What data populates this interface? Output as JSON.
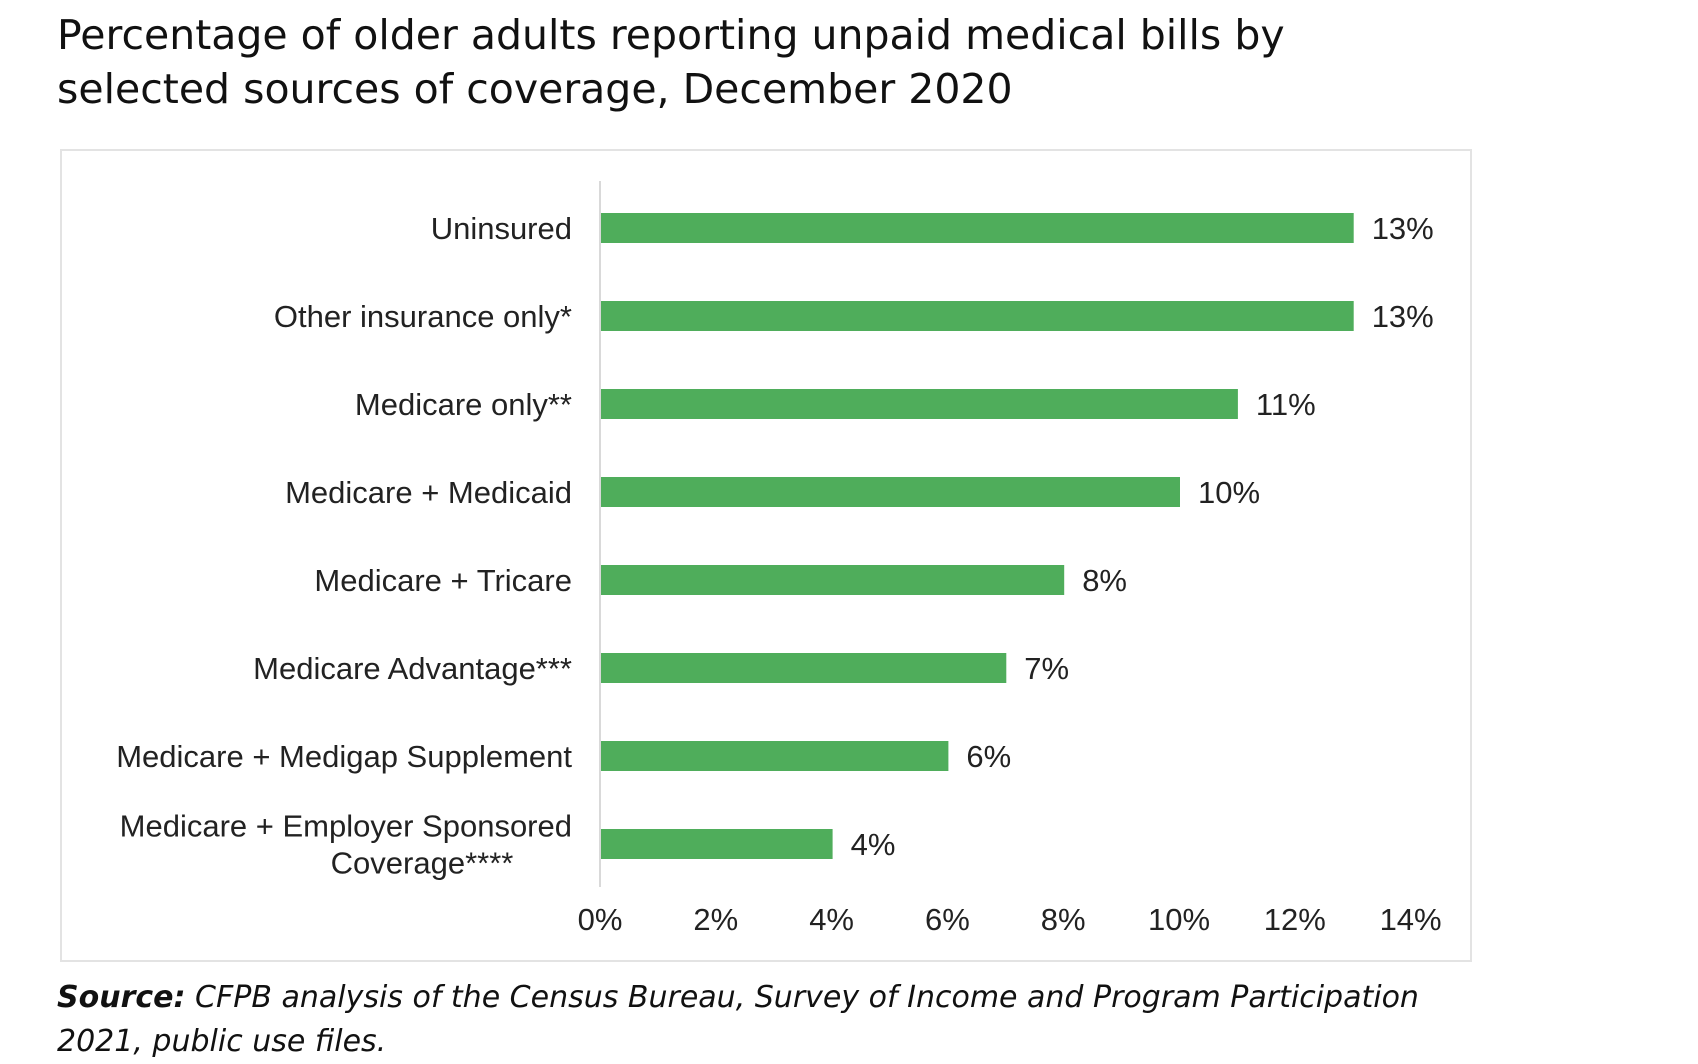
{
  "page": {
    "title": "Percentage of older adults reporting unpaid medical bills by selected sources of coverage, December 2020",
    "source_label": "Source:",
    "source_text": "CFPB analysis of the Census Bureau, Survey of Income and Program Participation 2021, public use files."
  },
  "chart_data": {
    "type": "bar",
    "orientation": "horizontal",
    "title": "",
    "xlabel": "",
    "ylabel": "",
    "categories": [
      [
        "Uninsured"
      ],
      [
        "Other insurance only*"
      ],
      [
        "Medicare only**"
      ],
      [
        "Medicare + Medicaid"
      ],
      [
        "Medicare + Tricare"
      ],
      [
        "Medicare Advantage***"
      ],
      [
        "Medicare + Medigap Supplement"
      ],
      [
        "Medicare + Employer Sponsored",
        "Coverage****"
      ]
    ],
    "values": [
      13,
      13,
      11,
      10,
      8,
      7,
      6,
      4
    ],
    "value_labels": [
      "13%",
      "13%",
      "11%",
      "10%",
      "8%",
      "7%",
      "6%",
      "4%"
    ],
    "xlim": [
      0,
      14
    ],
    "x_ticks": [
      0,
      2,
      4,
      6,
      8,
      10,
      12,
      14
    ],
    "x_tick_labels": [
      "0%",
      "2%",
      "4%",
      "6%",
      "8%",
      "10%",
      "12%",
      "14%"
    ],
    "grid": false,
    "legend": "none",
    "bar_color": "#4fad5b",
    "axis_color": "#d9d9d9",
    "text_color": "#222222"
  }
}
